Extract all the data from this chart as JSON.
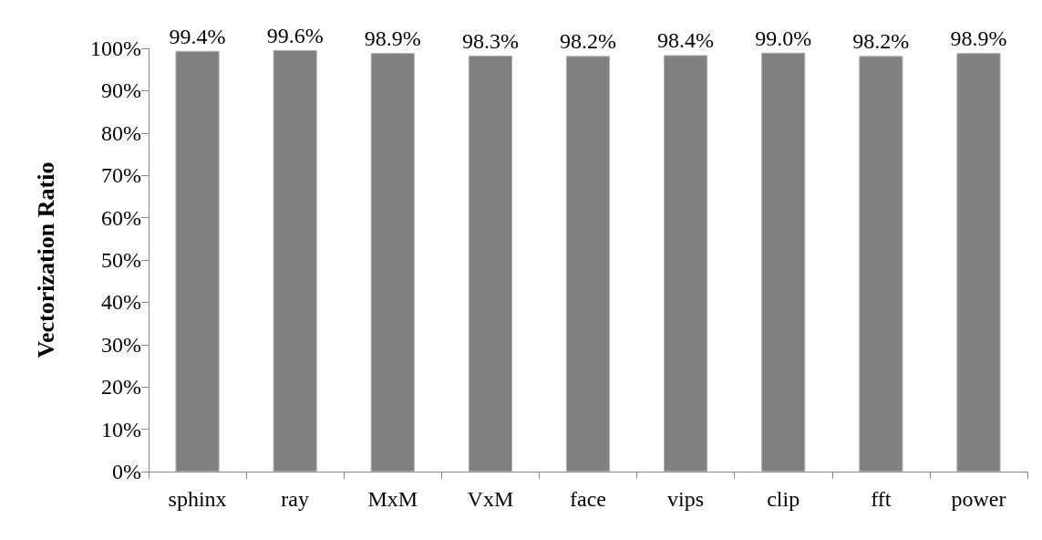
{
  "chart_data": {
    "type": "bar",
    "ylabel": "Vectorization Ratio",
    "categories": [
      "sphinx",
      "ray",
      "MxM",
      "VxM",
      "face",
      "vips",
      "clip",
      "fft",
      "power"
    ],
    "values": [
      99.4,
      99.6,
      98.9,
      98.3,
      98.2,
      98.4,
      99.0,
      98.2,
      98.9
    ],
    "value_labels": [
      "99.4%",
      "99.6%",
      "98.9%",
      "98.3%",
      "98.2%",
      "98.4%",
      "99.0%",
      "98.2%",
      "98.9%"
    ],
    "color": "#808080",
    "ylim": [
      0,
      100
    ],
    "yticks": [
      {
        "value": 0,
        "label": "0%"
      },
      {
        "value": 10,
        "label": "10%"
      },
      {
        "value": 20,
        "label": "20%"
      },
      {
        "value": 30,
        "label": "30%"
      },
      {
        "value": 40,
        "label": "40%"
      },
      {
        "value": 50,
        "label": "50%"
      },
      {
        "value": 60,
        "label": "60%"
      },
      {
        "value": 70,
        "label": "70%"
      },
      {
        "value": 80,
        "label": "80%"
      },
      {
        "value": 90,
        "label": "90%"
      },
      {
        "value": 100,
        "label": "100%"
      }
    ],
    "grid": false
  }
}
